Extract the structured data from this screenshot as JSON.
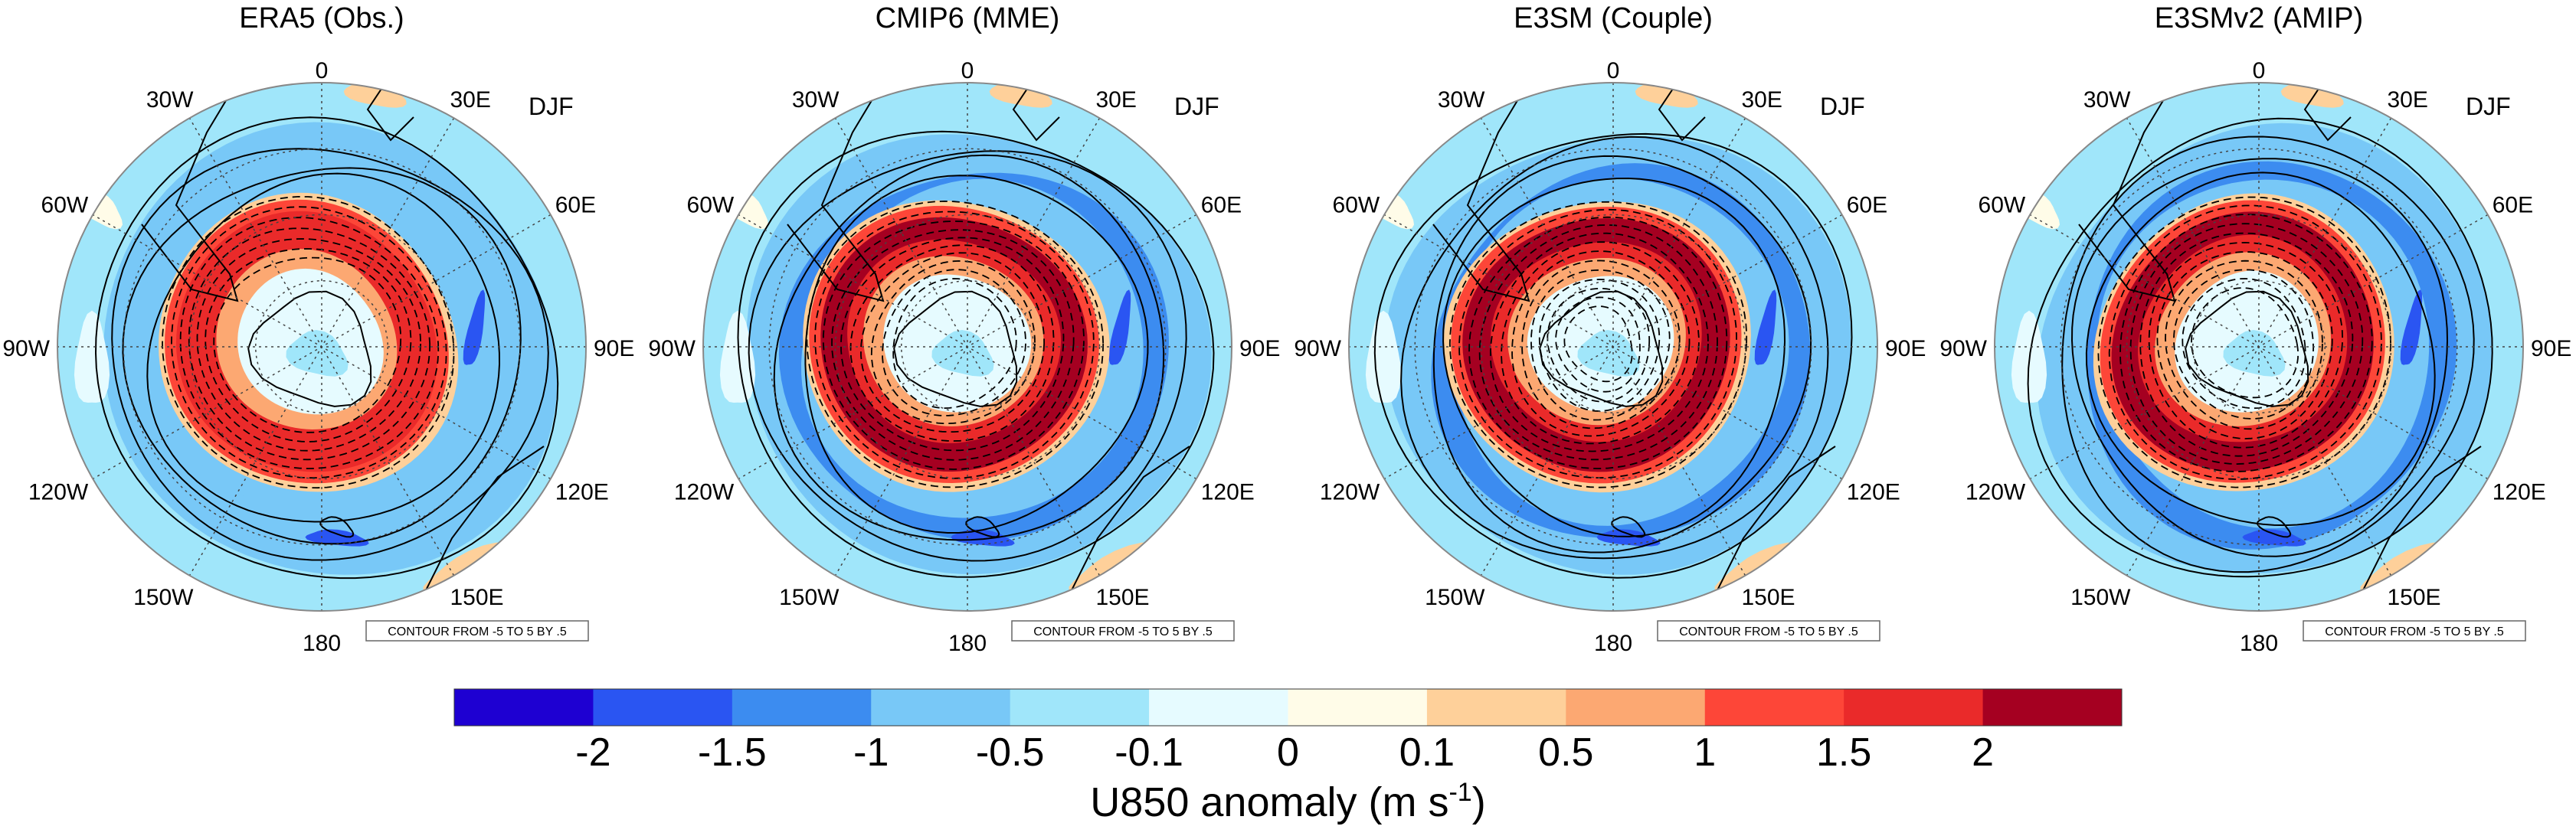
{
  "season": "DJF",
  "longitude_labels": [
    {
      "lon": 0,
      "text": "0"
    },
    {
      "lon": 30,
      "text": "30E"
    },
    {
      "lon": 60,
      "text": "60E"
    },
    {
      "lon": 90,
      "text": "90E"
    },
    {
      "lon": 120,
      "text": "120E"
    },
    {
      "lon": 150,
      "text": "150E"
    },
    {
      "lon": 180,
      "text": "180"
    },
    {
      "lon": -150,
      "text": "150W"
    },
    {
      "lon": -120,
      "text": "120W"
    },
    {
      "lon": -90,
      "text": "90W"
    },
    {
      "lon": -60,
      "text": "60W"
    },
    {
      "lon": -30,
      "text": "30W"
    }
  ],
  "contour_note": "CONTOUR FROM -5 TO 5 BY .5",
  "panels": [
    {
      "title": "ERA5 (Obs.)",
      "ring_strength": 0.72,
      "dashed_rings": 7,
      "blue_strength": 0.55
    },
    {
      "title": "CMIP6 (MME)",
      "ring_strength": 0.9,
      "dashed_rings": 10,
      "blue_strength": 0.8
    },
    {
      "title": "E3SM (Couple)",
      "ring_strength": 1.0,
      "dashed_rings": 13,
      "blue_strength": 0.95
    },
    {
      "title": "E3SMv2 (AMIP)",
      "ring_strength": 0.92,
      "dashed_rings": 11,
      "blue_strength": 0.8
    }
  ],
  "colorbar": {
    "colors": [
      "#1e00d2",
      "#2a55f2",
      "#3c8cf0",
      "#78c8f7",
      "#a0e6fa",
      "#e6fbff",
      "#fffce8",
      "#fed09a",
      "#fca872",
      "#fd4638",
      "#ea2a2a",
      "#a50021"
    ],
    "tick_labels": [
      "-2",
      "-1.5",
      "-1",
      "-0.5",
      "-0.1",
      "0",
      "0.1",
      "0.5",
      "1",
      "1.5",
      "2"
    ],
    "label_main": "U850 anomaly (m s",
    "label_sup": "-1",
    "label_end": ")"
  }
}
